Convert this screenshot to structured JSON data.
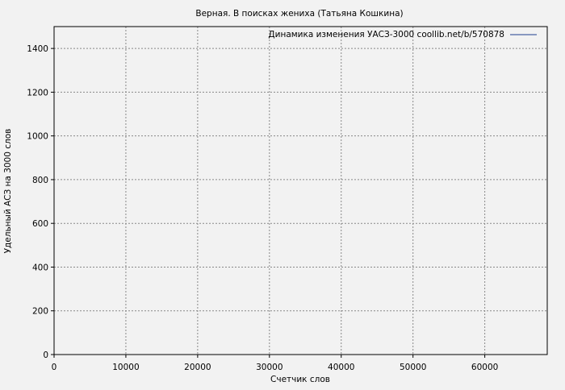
{
  "chart_data": {
    "type": "line",
    "title": "Верная. В поисках жениха (Татьяна Кошкина)",
    "xlabel": "Счетчик слов",
    "ylabel": "Удельный АСЗ на 3000 слов",
    "xlim": [
      0,
      68700
    ],
    "ylim": [
      0,
      1500
    ],
    "xticks": [
      0,
      10000,
      20000,
      30000,
      40000,
      50000,
      60000
    ],
    "yticks": [
      0,
      200,
      400,
      600,
      800,
      1000,
      1200,
      1400
    ],
    "grid": true,
    "legend_placement": "top-right",
    "series": [
      {
        "name": "Динамика изменения УАСЗ-3000 coollib.net/b/570878",
        "color": "#1f3f8f",
        "x": [],
        "y": []
      }
    ]
  }
}
